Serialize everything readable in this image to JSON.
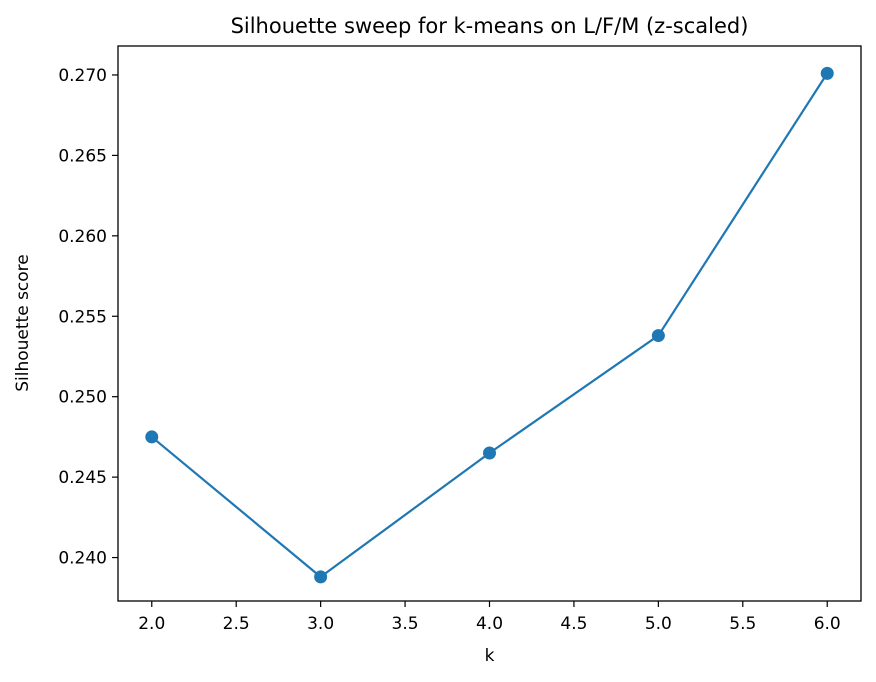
{
  "chart_data": {
    "type": "line",
    "title": "Silhouette sweep for k-means on L/F/M (z-scaled)",
    "xlabel": "k",
    "ylabel": "Silhouette score",
    "x": [
      2,
      3,
      4,
      5,
      6
    ],
    "series": [
      {
        "values": [
          0.2475,
          0.2388,
          0.2465,
          0.2538,
          0.2701
        ],
        "color": "#1f77b4",
        "marker": "circle"
      }
    ],
    "xlim": [
      1.8,
      6.2
    ],
    "ylim": [
      0.2373,
      0.2718
    ],
    "xticks": [
      2.0,
      2.5,
      3.0,
      3.5,
      4.0,
      4.5,
      5.0,
      5.5,
      6.0
    ],
    "xtick_labels": [
      "2.0",
      "2.5",
      "3.0",
      "3.5",
      "4.0",
      "4.5",
      "5.0",
      "5.5",
      "6.0"
    ],
    "yticks": [
      0.24,
      0.245,
      0.25,
      0.255,
      0.26,
      0.265,
      0.27
    ],
    "ytick_labels": [
      "0.240",
      "0.245",
      "0.250",
      "0.255",
      "0.260",
      "0.265",
      "0.270"
    ],
    "grid": false,
    "legend": false
  }
}
